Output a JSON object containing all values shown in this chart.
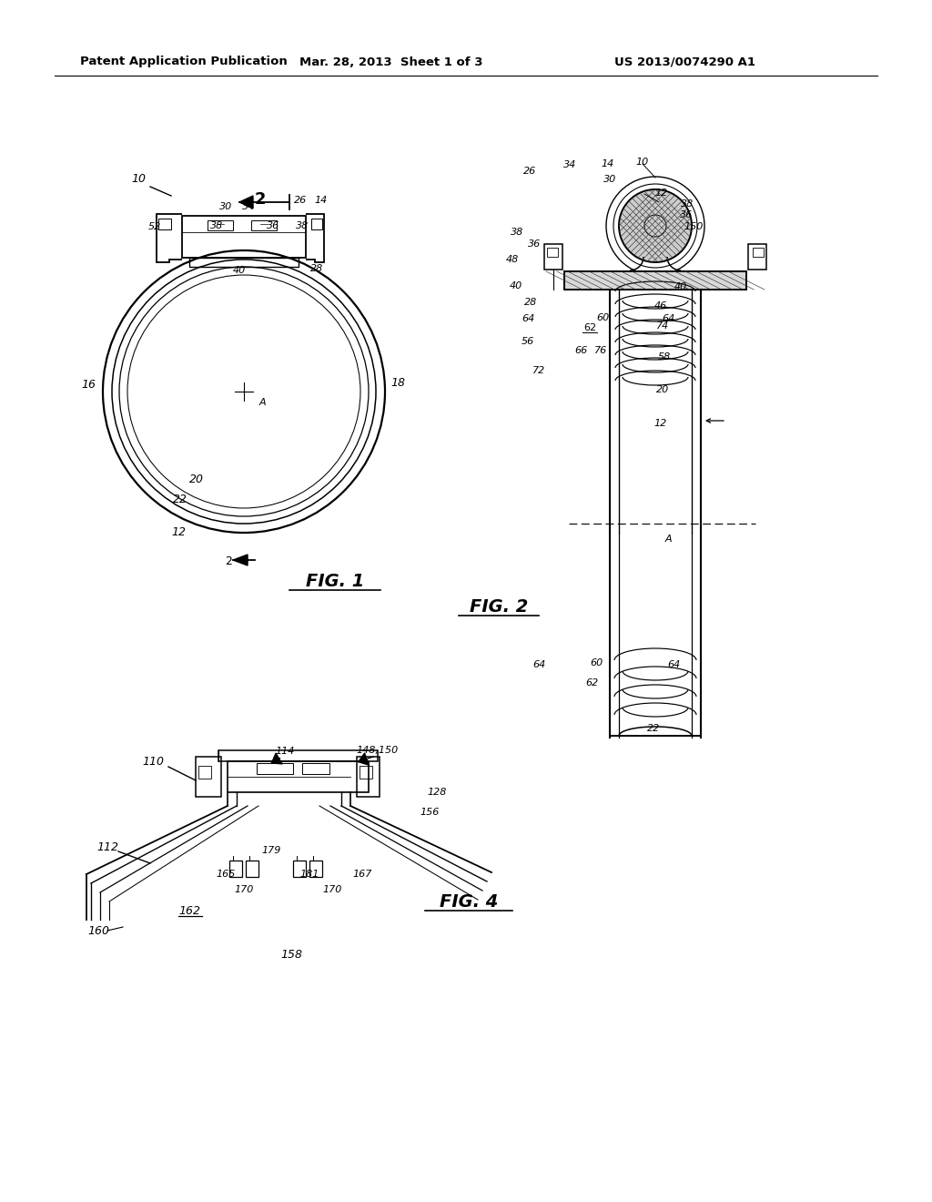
{
  "bg": "#ffffff",
  "lc": "#000000",
  "header_left": "Patent Application Publication",
  "header_center": "Mar. 28, 2013  Sheet 1 of 3",
  "header_right": "US 2013/0074290 A1",
  "fig1_label": "FIG. 1",
  "fig2_label": "FIG. 2",
  "fig4_label": "FIG. 4"
}
